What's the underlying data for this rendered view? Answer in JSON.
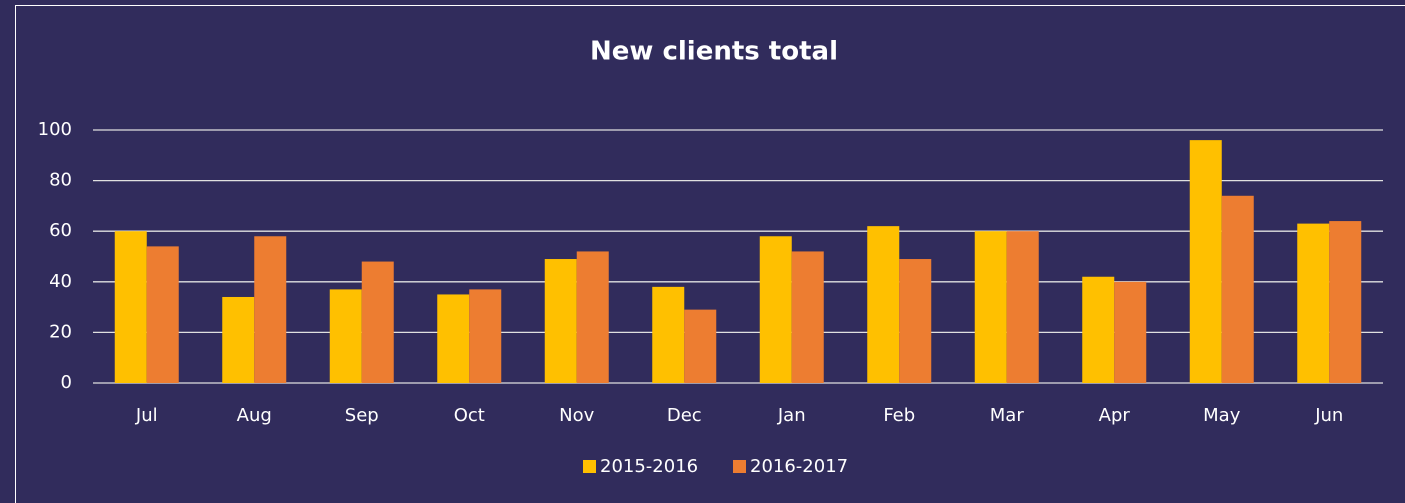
{
  "chart_data": {
    "type": "bar",
    "title": "New clients total",
    "categories": [
      "Jul",
      "Aug",
      "Sep",
      "Oct",
      "Nov",
      "Dec",
      "Jan",
      "Feb",
      "Mar",
      "Apr",
      "May",
      "Jun"
    ],
    "series": [
      {
        "name": "2015-2016",
        "color": "#ffc000",
        "values": [
          60,
          34,
          37,
          35,
          49,
          38,
          58,
          62,
          60,
          42,
          96,
          63
        ]
      },
      {
        "name": "2016-2017",
        "color": "#ed7d31",
        "values": [
          54,
          58,
          48,
          37,
          52,
          29,
          52,
          49,
          60,
          40,
          74,
          64
        ]
      }
    ],
    "ylim": [
      0,
      100
    ],
    "yticks": [
      0,
      20,
      40,
      60,
      80,
      100
    ],
    "grid": true,
    "legend": "bottom"
  }
}
